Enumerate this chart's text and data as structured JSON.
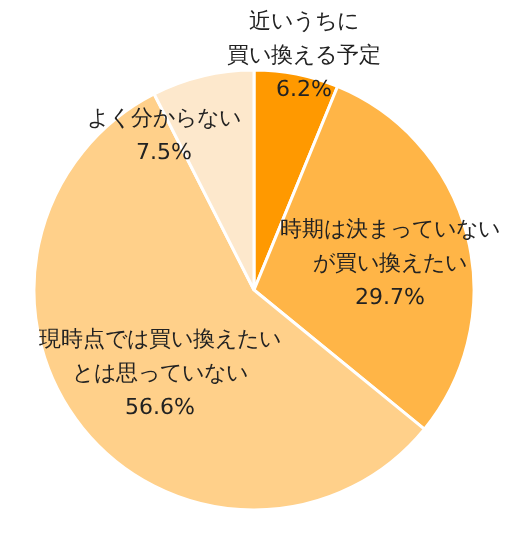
{
  "chart_data": {
    "type": "pie",
    "categories": [
      "近いうちに買い換える予定",
      "時期は決まっていないが買い換えたい",
      "現時点では買い換えたいとは思っていない",
      "よく分からない"
    ],
    "values": [
      6.2,
      29.7,
      56.6,
      7.5
    ],
    "value_labels": [
      "6.2%",
      "29.7%",
      "56.6%",
      "7.5%"
    ],
    "colors": [
      "#ff9900",
      "#ffb547",
      "#ffd08a",
      "#fde8cc"
    ]
  }
}
